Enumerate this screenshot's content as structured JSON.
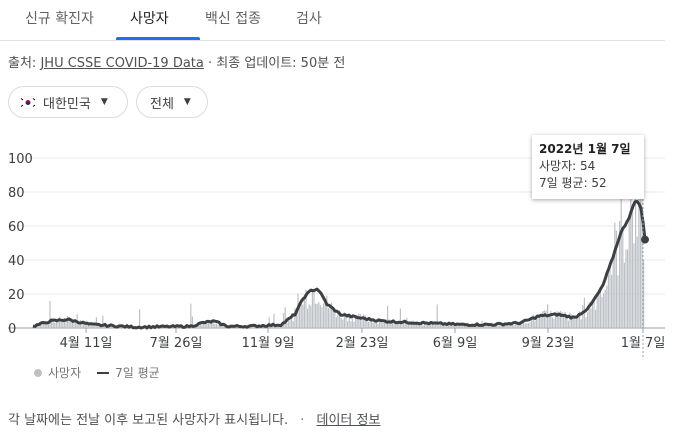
{
  "tabs": [
    "신규 확진자",
    "사망자",
    "백신 접종",
    "검사"
  ],
  "source": {
    "prefix": "출처:",
    "link": "JHU CSSE COVID-19 Data",
    "updated": "· 최종 업데이트: 50분 전"
  },
  "filters": {
    "country": "대한민국",
    "scope": "전체"
  },
  "tooltip": {
    "date": "2022년 1월 7일",
    "deaths_label": "사망자: 54",
    "avg_label": "7일 평균: 52"
  },
  "legend": {
    "bars": "사망자",
    "line": "7일 평균"
  },
  "footnote": {
    "text": "각 날짜에는 전날 이후 보고된 사망자가 표시됩니다.",
    "sep": "·",
    "link": "데이터 정보"
  },
  "colors": {
    "bars": "#bdc1c6",
    "line": "#3c4043",
    "accent": "#1a73e8"
  },
  "chart_data": {
    "type": "line",
    "x_tick_labels": [
      "4월 11일",
      "7월 26일",
      "11월 9일",
      "2월 23일",
      "6월 9일",
      "9월 23일",
      "1월 7일"
    ],
    "y_ticks": [
      0,
      20,
      40,
      60,
      80,
      100
    ],
    "ylim": [
      0,
      100
    ],
    "grid": true,
    "series": [
      {
        "name": "7일 평균",
        "x": [
          "2020-02-20",
          "2020-03-10",
          "2020-03-30",
          "2020-04-25",
          "2020-06-15",
          "2020-08-15",
          "2020-08-28",
          "2020-09-10",
          "2020-09-25",
          "2020-10-20",
          "2020-11-25",
          "2020-12-10",
          "2020-12-20",
          "2020-12-28",
          "2021-01-05",
          "2021-01-15",
          "2021-01-30",
          "2021-02-20",
          "2021-03-20",
          "2021-05-01",
          "2021-06-15",
          "2021-07-20",
          "2021-08-20",
          "2021-09-10",
          "2021-10-01",
          "2021-10-20",
          "2021-11-05",
          "2021-11-20",
          "2021-12-01",
          "2021-12-10",
          "2021-12-20",
          "2021-12-28",
          "2022-01-03",
          "2022-01-07"
        ],
        "values": [
          1,
          4,
          5,
          2,
          0.5,
          1,
          3,
          4,
          1,
          1,
          2,
          8,
          18,
          22,
          23,
          14,
          8,
          6,
          4,
          3,
          2,
          2,
          3,
          7,
          8,
          6,
          12,
          24,
          40,
          55,
          65,
          76,
          70,
          52
        ]
      }
    ]
  }
}
